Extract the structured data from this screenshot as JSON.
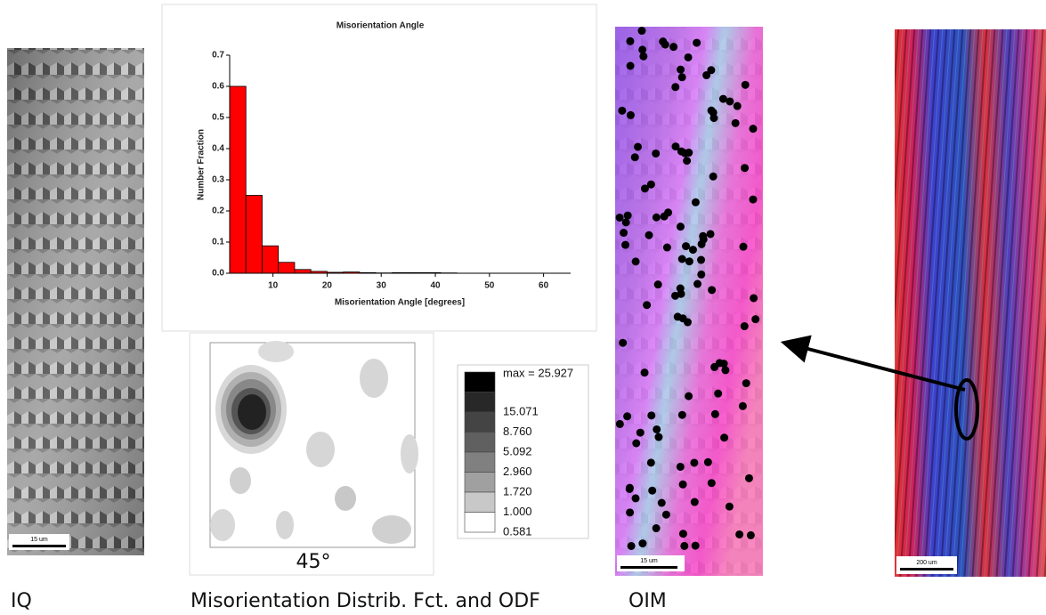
{
  "chart_data": {
    "type": "histogram",
    "title": "Misorientation Angle",
    "x_label": "Misorientation Angle [degrees]",
    "y_label": "Number Fraction",
    "bins": [
      2,
      5,
      8,
      11,
      14,
      17,
      20,
      23,
      26,
      29,
      32,
      35,
      38,
      41,
      44
    ],
    "values": [
      0.6,
      0.25,
      0.088,
      0.035,
      0.012,
      0.006,
      0.003,
      0.004,
      0.002,
      0.001,
      0.002,
      0.002,
      0.002,
      0.001
    ],
    "color": "#ff0000",
    "xlim": [
      2,
      65
    ],
    "xticks": [
      10,
      20,
      30,
      40,
      50,
      60
    ],
    "ylim": [
      0,
      0.7
    ],
    "yticks": [
      {
        "value": 0,
        "label": "0.0"
      },
      0.1,
      0.2,
      0.3,
      0.4,
      0.5,
      0.6,
      0.7
    ]
  },
  "iq_panel": {
    "scale_bar": "15 um",
    "caption": "IQ"
  },
  "odf_panel": {
    "section_label": "45°",
    "legend_labels": [
      "max = 25.927",
      "15.071",
      "8.760",
      "5.092",
      "2.960",
      "1.720",
      "1.000",
      "0.581"
    ],
    "caption": "Misorientation Distrib. Fct. and ODF"
  },
  "oim_panel": {
    "scale_bar": "15 um",
    "caption": "OIM"
  },
  "overview_panel": {
    "scale_bar": "200 um"
  }
}
